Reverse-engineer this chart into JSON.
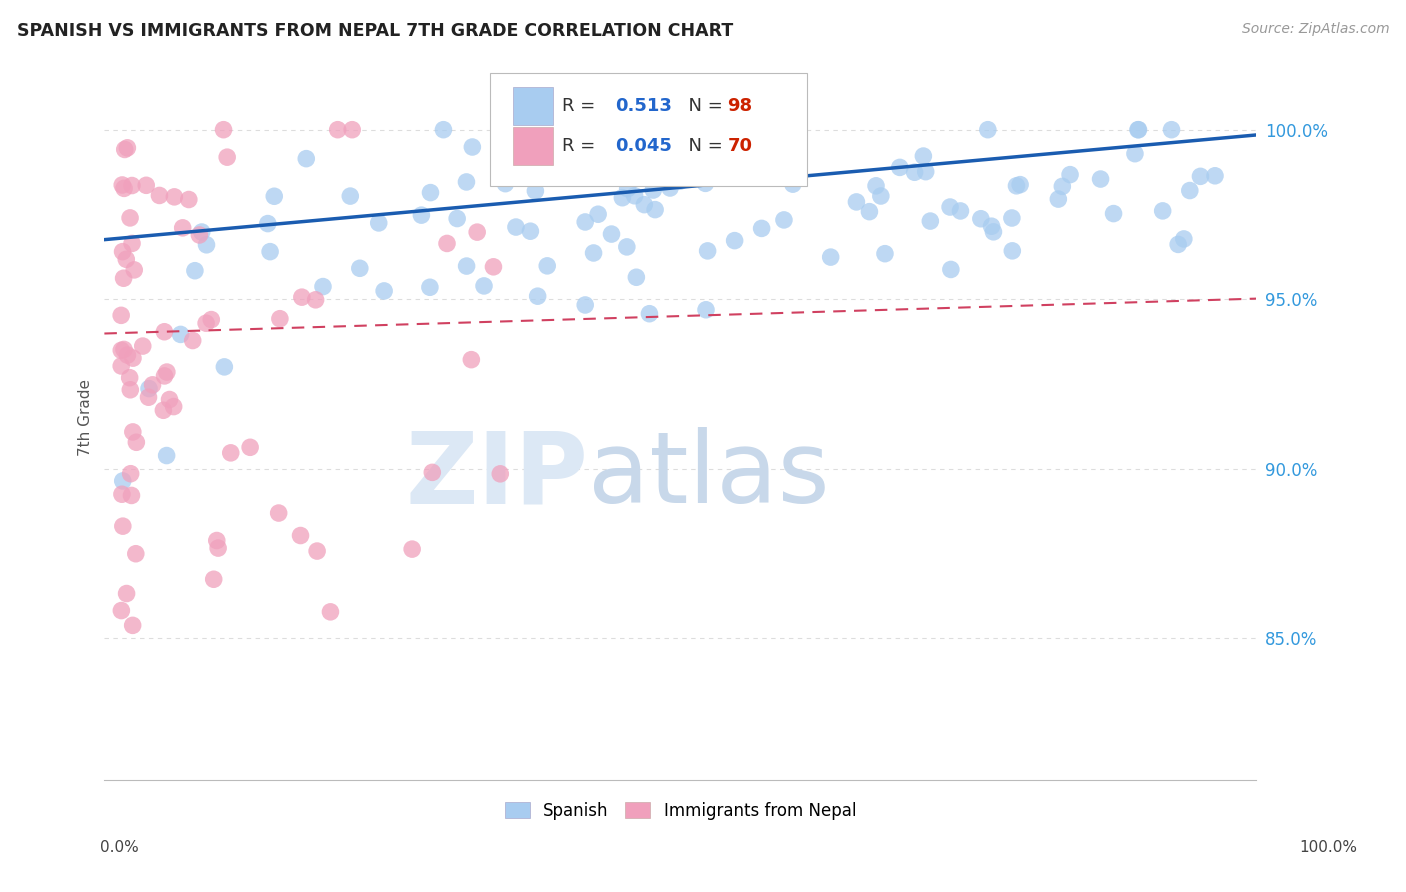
{
  "title": "SPANISH VS IMMIGRANTS FROM NEPAL 7TH GRADE CORRELATION CHART",
  "source": "Source: ZipAtlas.com",
  "ylabel": "7th Grade",
  "legend_label1": "Spanish",
  "legend_label2": "Immigrants from Nepal",
  "r1": 0.513,
  "n1": 98,
  "r2": 0.045,
  "n2": 70,
  "color_spanish": "#a8ccf0",
  "color_nepal": "#f0a0bc",
  "color_line1": "#1a5cb0",
  "color_line2": "#d04060",
  "y_tick_labels": [
    "85.0%",
    "90.0%",
    "95.0%",
    "100.0%"
  ],
  "y_tick_values": [
    0.85,
    0.9,
    0.95,
    1.0
  ],
  "ylim": [
    0.808,
    1.022
  ],
  "xlim": [
    -0.015,
    1.015
  ],
  "background_color": "#ffffff",
  "grid_color": "#dddddd"
}
